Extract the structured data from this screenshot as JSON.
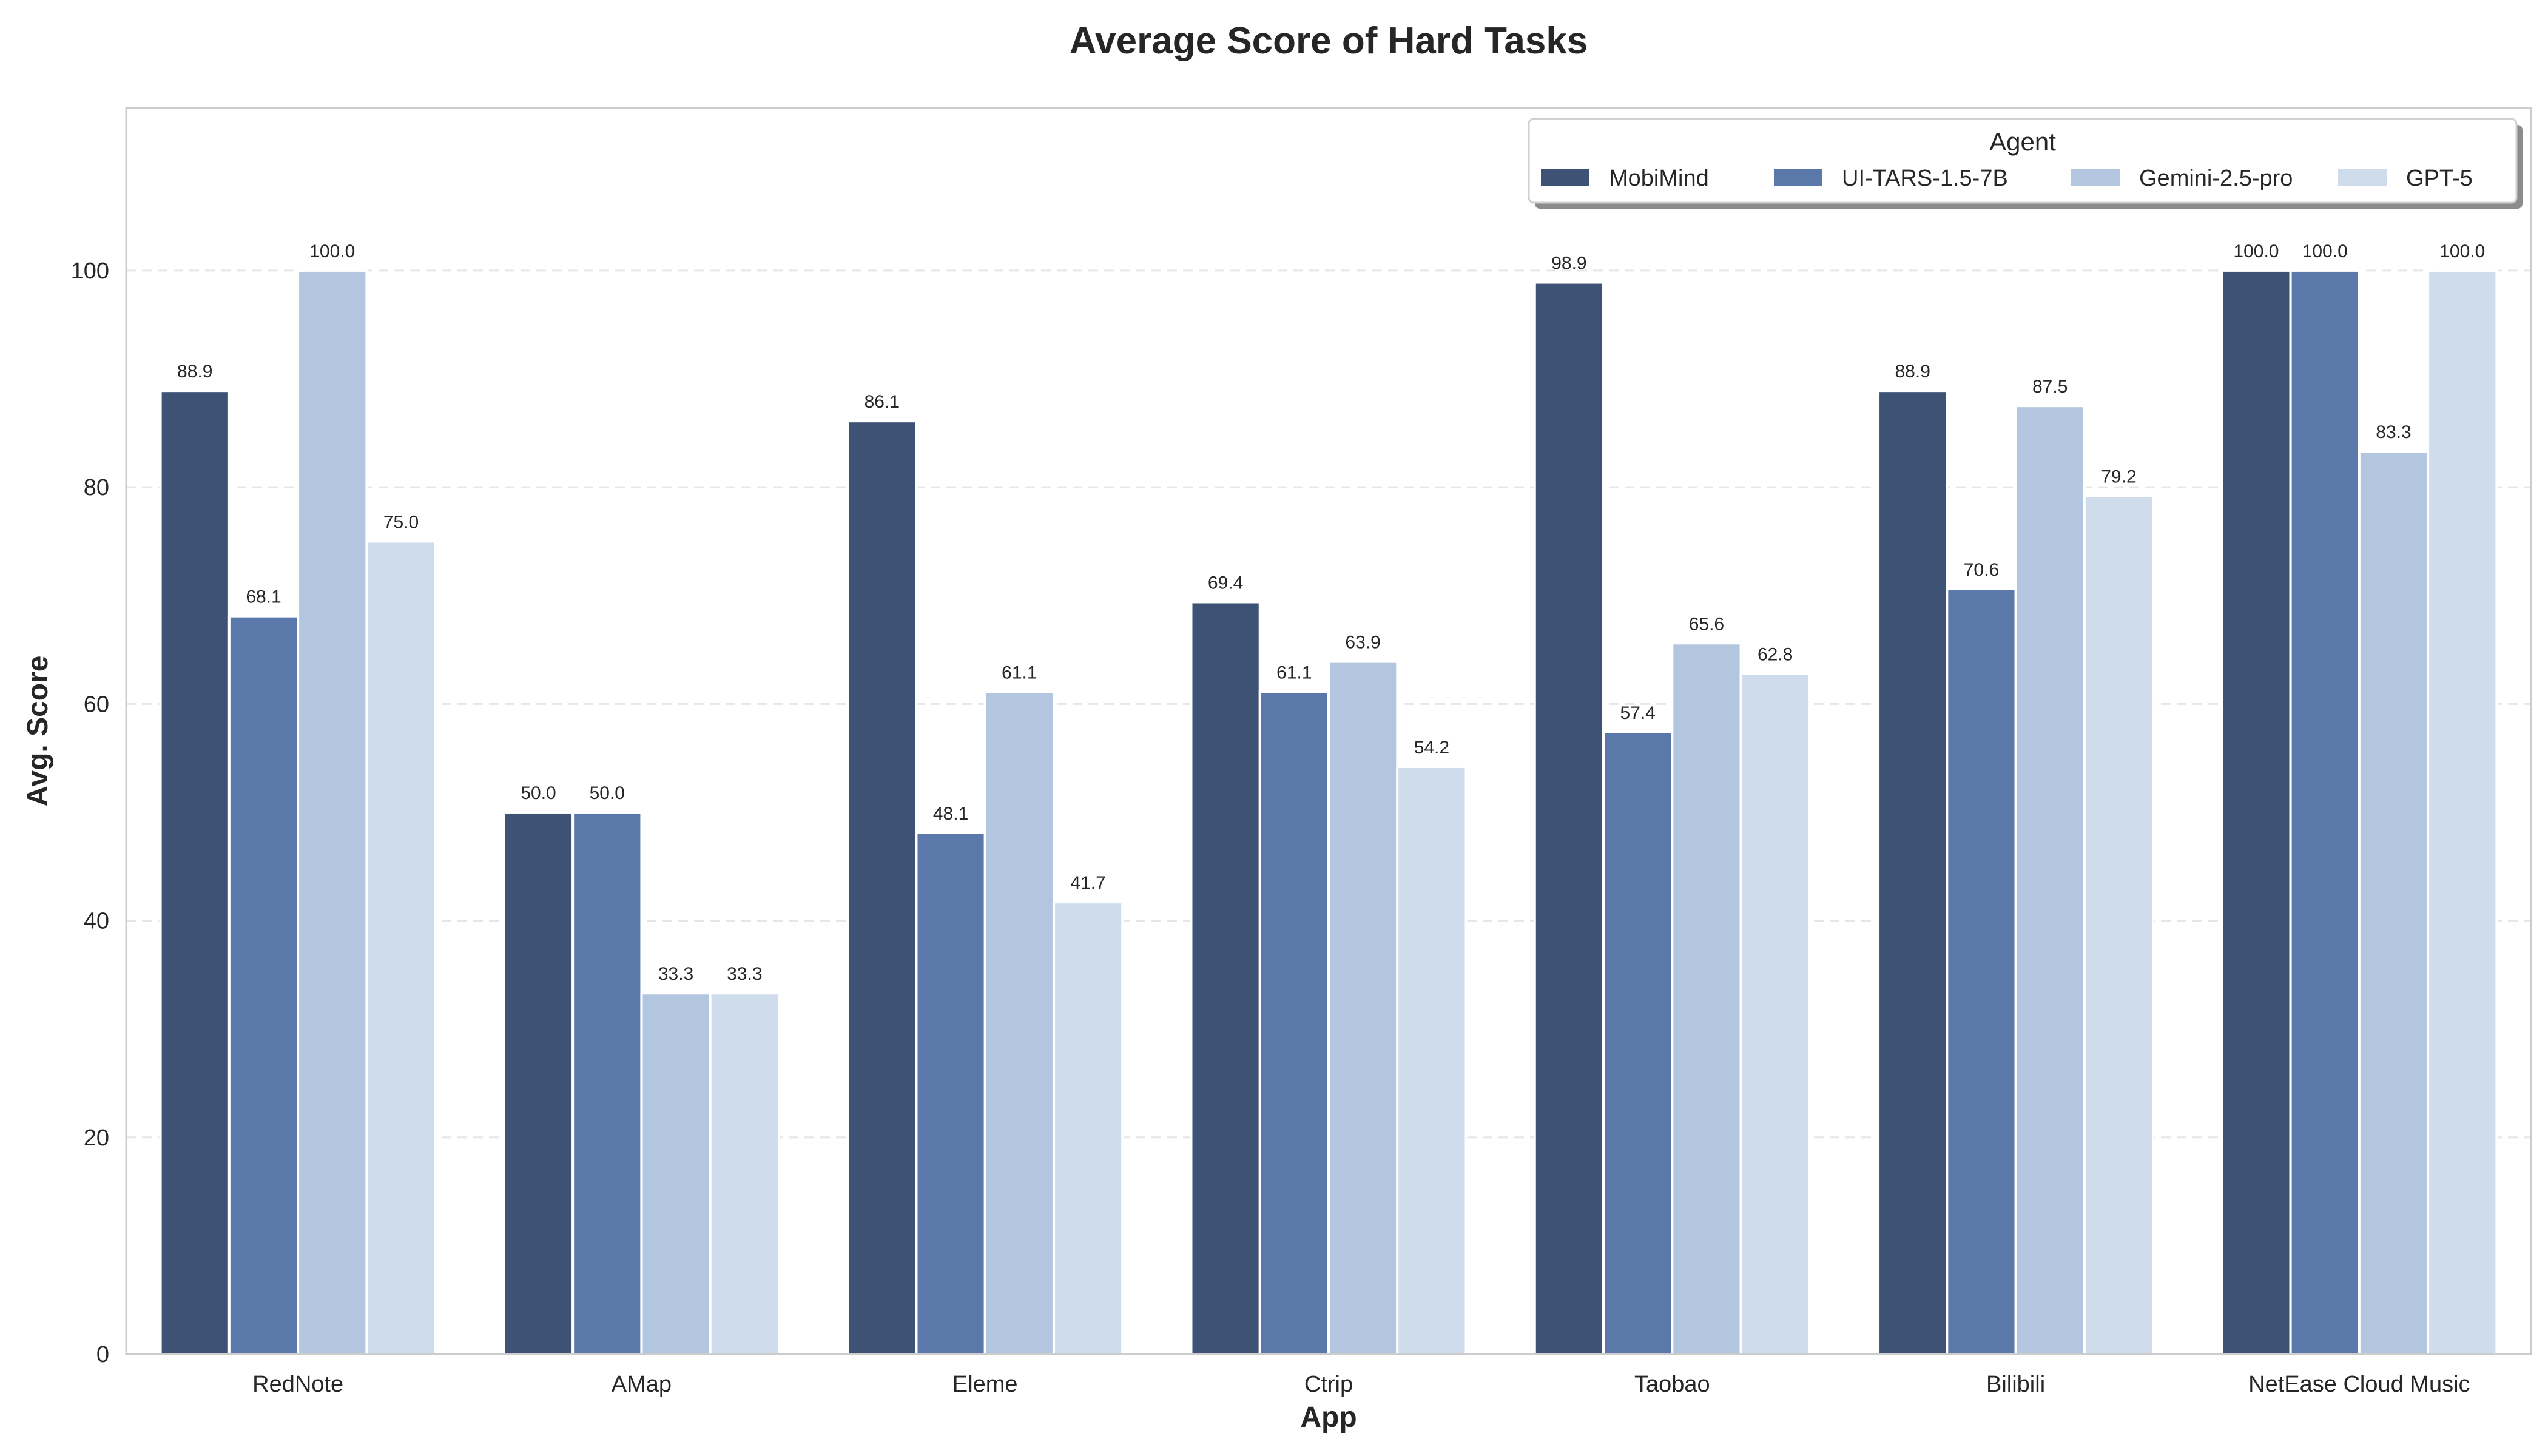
{
  "chart_data": {
    "type": "bar",
    "title": "Average Score of Hard Tasks",
    "xlabel": "App",
    "ylabel": "Avg. Score",
    "categories": [
      "RedNote",
      "AMap",
      "Eleme",
      "Ctrip",
      "Taobao",
      "Bilibili",
      "NetEase Cloud Music"
    ],
    "ylim": [
      0,
      115
    ],
    "yticks": [
      0,
      20,
      40,
      60,
      80,
      100
    ],
    "grid": "horizontal dashed",
    "legend": {
      "title": "Agent",
      "placement": "top-right"
    },
    "series": [
      {
        "name": "MobiMind",
        "color": "#3d5275",
        "values": [
          88.9,
          50.0,
          86.1,
          69.4,
          98.9,
          88.9,
          100.0
        ]
      },
      {
        "name": "UI-TARS-1.5-7B",
        "color": "#5a78aa",
        "values": [
          68.1,
          50.0,
          48.1,
          61.1,
          57.4,
          70.6,
          100.0
        ]
      },
      {
        "name": "Gemini-2.5-pro",
        "color": "#b2c6e0",
        "values": [
          100.0,
          33.3,
          61.1,
          63.9,
          65.6,
          87.5,
          83.3
        ]
      },
      {
        "name": "GPT-5",
        "color": "#cfdcec",
        "values": [
          75.0,
          33.3,
          41.7,
          54.2,
          62.8,
          79.2,
          100.0
        ]
      }
    ]
  }
}
